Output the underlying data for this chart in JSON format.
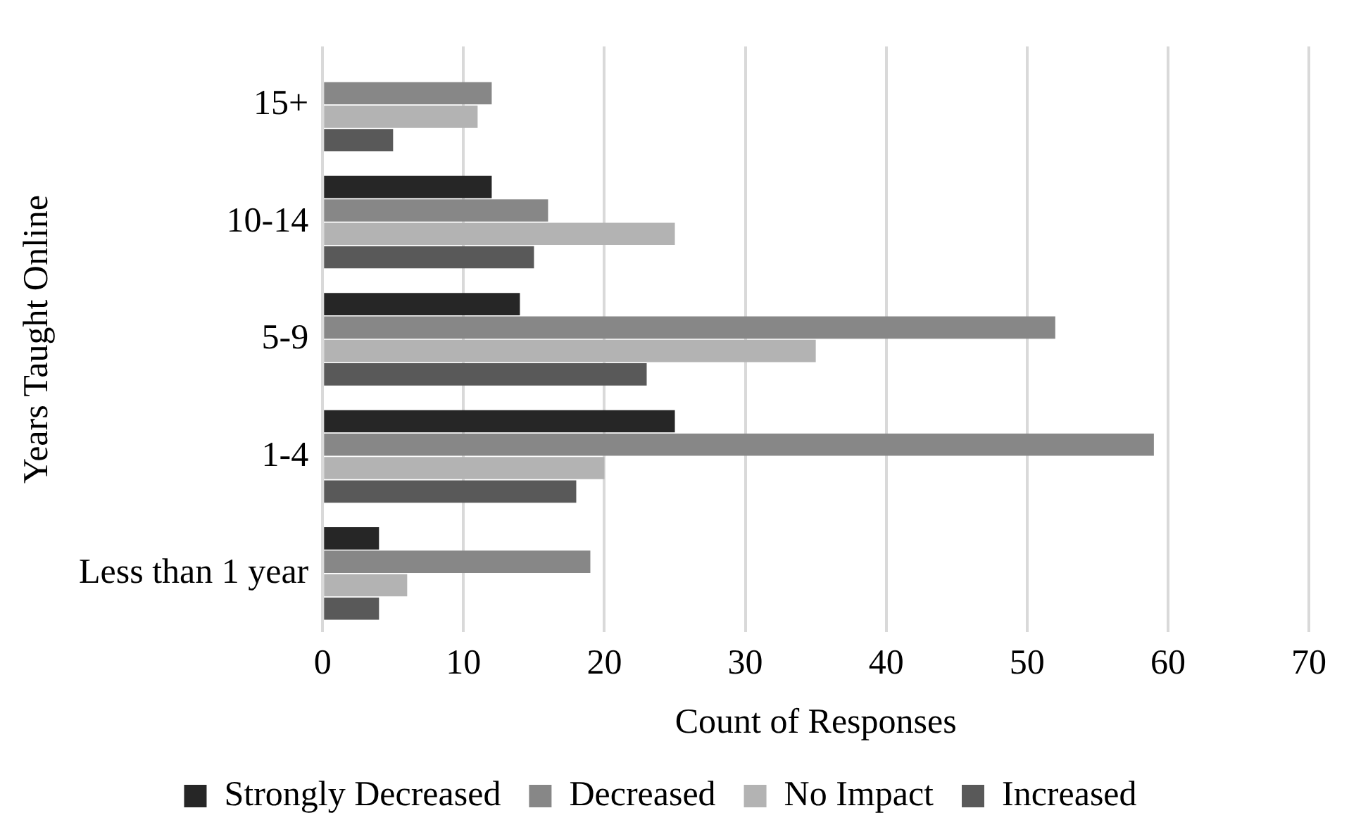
{
  "chart_data": {
    "type": "bar",
    "orientation": "horizontal",
    "xlabel": "Count of Responses",
    "ylabel": "Years Taught Online",
    "categories": [
      "15+",
      "10-14",
      "5-9",
      "1-4",
      "Less than 1 year"
    ],
    "series": [
      {
        "name": "Strongly Decreased",
        "color": "#262626",
        "values": [
          0,
          12,
          14,
          25,
          4
        ]
      },
      {
        "name": "Decreased",
        "color": "#878787",
        "values": [
          12,
          16,
          52,
          59,
          19
        ]
      },
      {
        "name": "No Impact",
        "color": "#b3b3b3",
        "values": [
          11,
          25,
          35,
          20,
          6
        ]
      },
      {
        "name": "Increased",
        "color": "#595959",
        "values": [
          5,
          15,
          23,
          18,
          4
        ]
      }
    ],
    "xlim": [
      0,
      70
    ],
    "xticks": [
      0,
      10,
      20,
      30,
      40,
      50,
      60,
      70
    ],
    "grid": "x",
    "legend": "bottom"
  }
}
